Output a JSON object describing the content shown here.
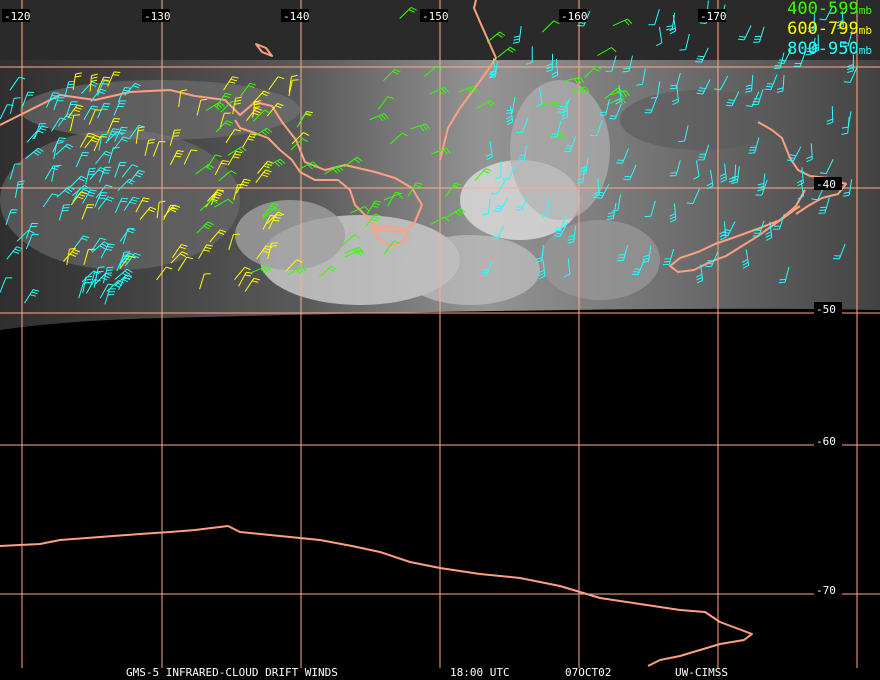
{
  "legend": [
    {
      "range": "400-599",
      "unit": "mb",
      "color": "#33ff00"
    },
    {
      "range": "600-799",
      "unit": "mb",
      "color": "#ffff00"
    },
    {
      "range": "800-950",
      "unit": "mb",
      "color": "#22ffff"
    }
  ],
  "longitude_labels": [
    "-120",
    "-130",
    "-140",
    "-150",
    "-160",
    "-170"
  ],
  "latitude_labels": [
    "-40",
    "-50",
    "-60",
    "-70"
  ],
  "footer": {
    "title": "GMS-5 INFRARED-CLOUD DRIFT WINDS",
    "time": "18:00 UTC",
    "date": "07OCT02",
    "source": "UW-CIMSS"
  },
  "colors": {
    "grid": "#ffad85",
    "coast": "#ffa080",
    "background": "#000000"
  }
}
